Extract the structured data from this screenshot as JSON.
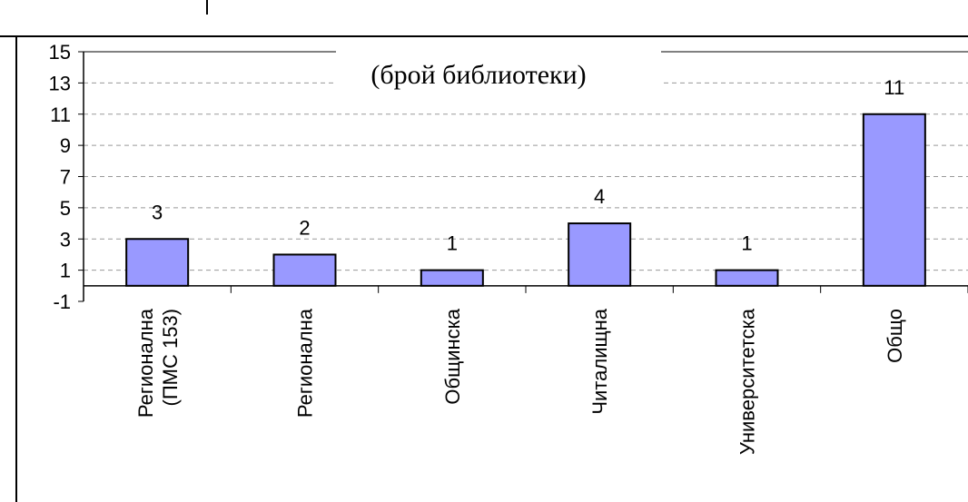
{
  "chart_data": {
    "type": "bar",
    "title": "(брой библиотеки)",
    "categories": [
      "Регионална\n(ПМС 153)",
      "Регионална",
      "Общинска",
      "Читалищна",
      "Университетска",
      "Общо"
    ],
    "values": [
      3,
      2,
      1,
      4,
      1,
      11
    ],
    "color": "#9999ff",
    "ylim": [
      -1,
      15
    ],
    "yticks": [
      -1,
      1,
      3,
      5,
      7,
      9,
      11,
      13,
      15
    ],
    "grid": true
  }
}
